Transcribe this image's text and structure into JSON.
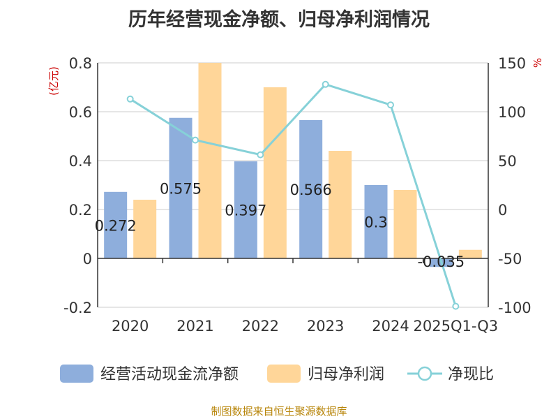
{
  "title": "历年经营现金净额、归母净利润情况",
  "source": "制图数据来自恒生聚源数据库",
  "chart_data": {
    "type": "bar",
    "categories": [
      "2020",
      "2021",
      "2022",
      "2023",
      "2024",
      "2025Q1-Q3"
    ],
    "series": [
      {
        "name": "经营活动现金流净额",
        "type": "bar",
        "axis": "left",
        "color": "#8eaedc",
        "values": [
          0.272,
          0.575,
          0.397,
          0.566,
          0.3,
          -0.035
        ],
        "labels": [
          "0.272",
          "0.575",
          "0.397",
          "0.566",
          "0.3",
          "-0.035"
        ]
      },
      {
        "name": "归母净利润",
        "type": "bar",
        "axis": "left",
        "color": "#ffd699",
        "values": [
          0.24,
          0.8,
          0.7,
          0.44,
          0.28,
          0.035
        ]
      },
      {
        "name": "净现比",
        "type": "line",
        "axis": "right",
        "color": "#86d1d8",
        "values": [
          113,
          71,
          56,
          128,
          107,
          -99
        ]
      }
    ],
    "left_axis": {
      "unit": "(亿元)",
      "ylim": [
        -0.2,
        0.8
      ],
      "ticks": [
        "-0.2",
        "0",
        "0.2",
        "0.4",
        "0.6",
        "0.8"
      ],
      "tick_values": [
        -0.2,
        0,
        0.2,
        0.4,
        0.6,
        0.8
      ]
    },
    "right_axis": {
      "unit": "%",
      "ylim": [
        -100,
        150
      ],
      "ticks": [
        "-100",
        "-50",
        "0",
        "50",
        "100",
        "150"
      ],
      "tick_values": [
        -100,
        -50,
        0,
        50,
        100,
        150
      ]
    },
    "grid": true,
    "legend_position": "bottom"
  }
}
